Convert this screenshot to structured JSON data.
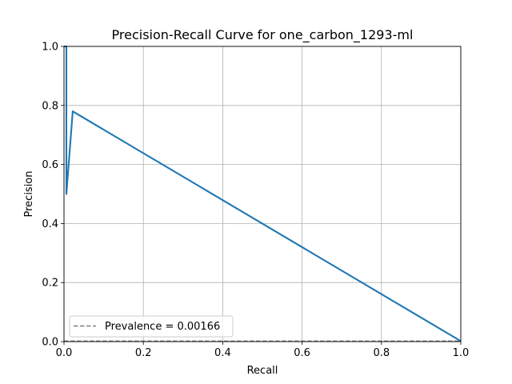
{
  "chart_data": {
    "type": "line",
    "title": "Precision-Recall Curve for one_carbon_1293-ml",
    "xlabel": "Recall",
    "ylabel": "Precision",
    "xlim": [
      0,
      1
    ],
    "ylim": [
      0,
      1
    ],
    "grid": true,
    "x_ticks": [
      "0.0",
      "0.2",
      "0.4",
      "0.6",
      "0.8",
      "1.0"
    ],
    "y_ticks": [
      "0.0",
      "0.2",
      "0.4",
      "0.6",
      "0.8",
      "1.0"
    ],
    "series": [
      {
        "color": "#1f77b4",
        "style": "solid",
        "points": [
          [
            0.0,
            1.0
          ],
          [
            0.006,
            1.0
          ],
          [
            0.006,
            0.5
          ],
          [
            0.022,
            0.78
          ],
          [
            1.0,
            0.00166
          ]
        ]
      },
      {
        "name": "Prevalence = 0.00166",
        "color": "#808080",
        "style": "dashed",
        "points": [
          [
            0.0,
            0.00166
          ],
          [
            1.0,
            0.00166
          ]
        ]
      }
    ],
    "legend_position": "lower-left"
  }
}
